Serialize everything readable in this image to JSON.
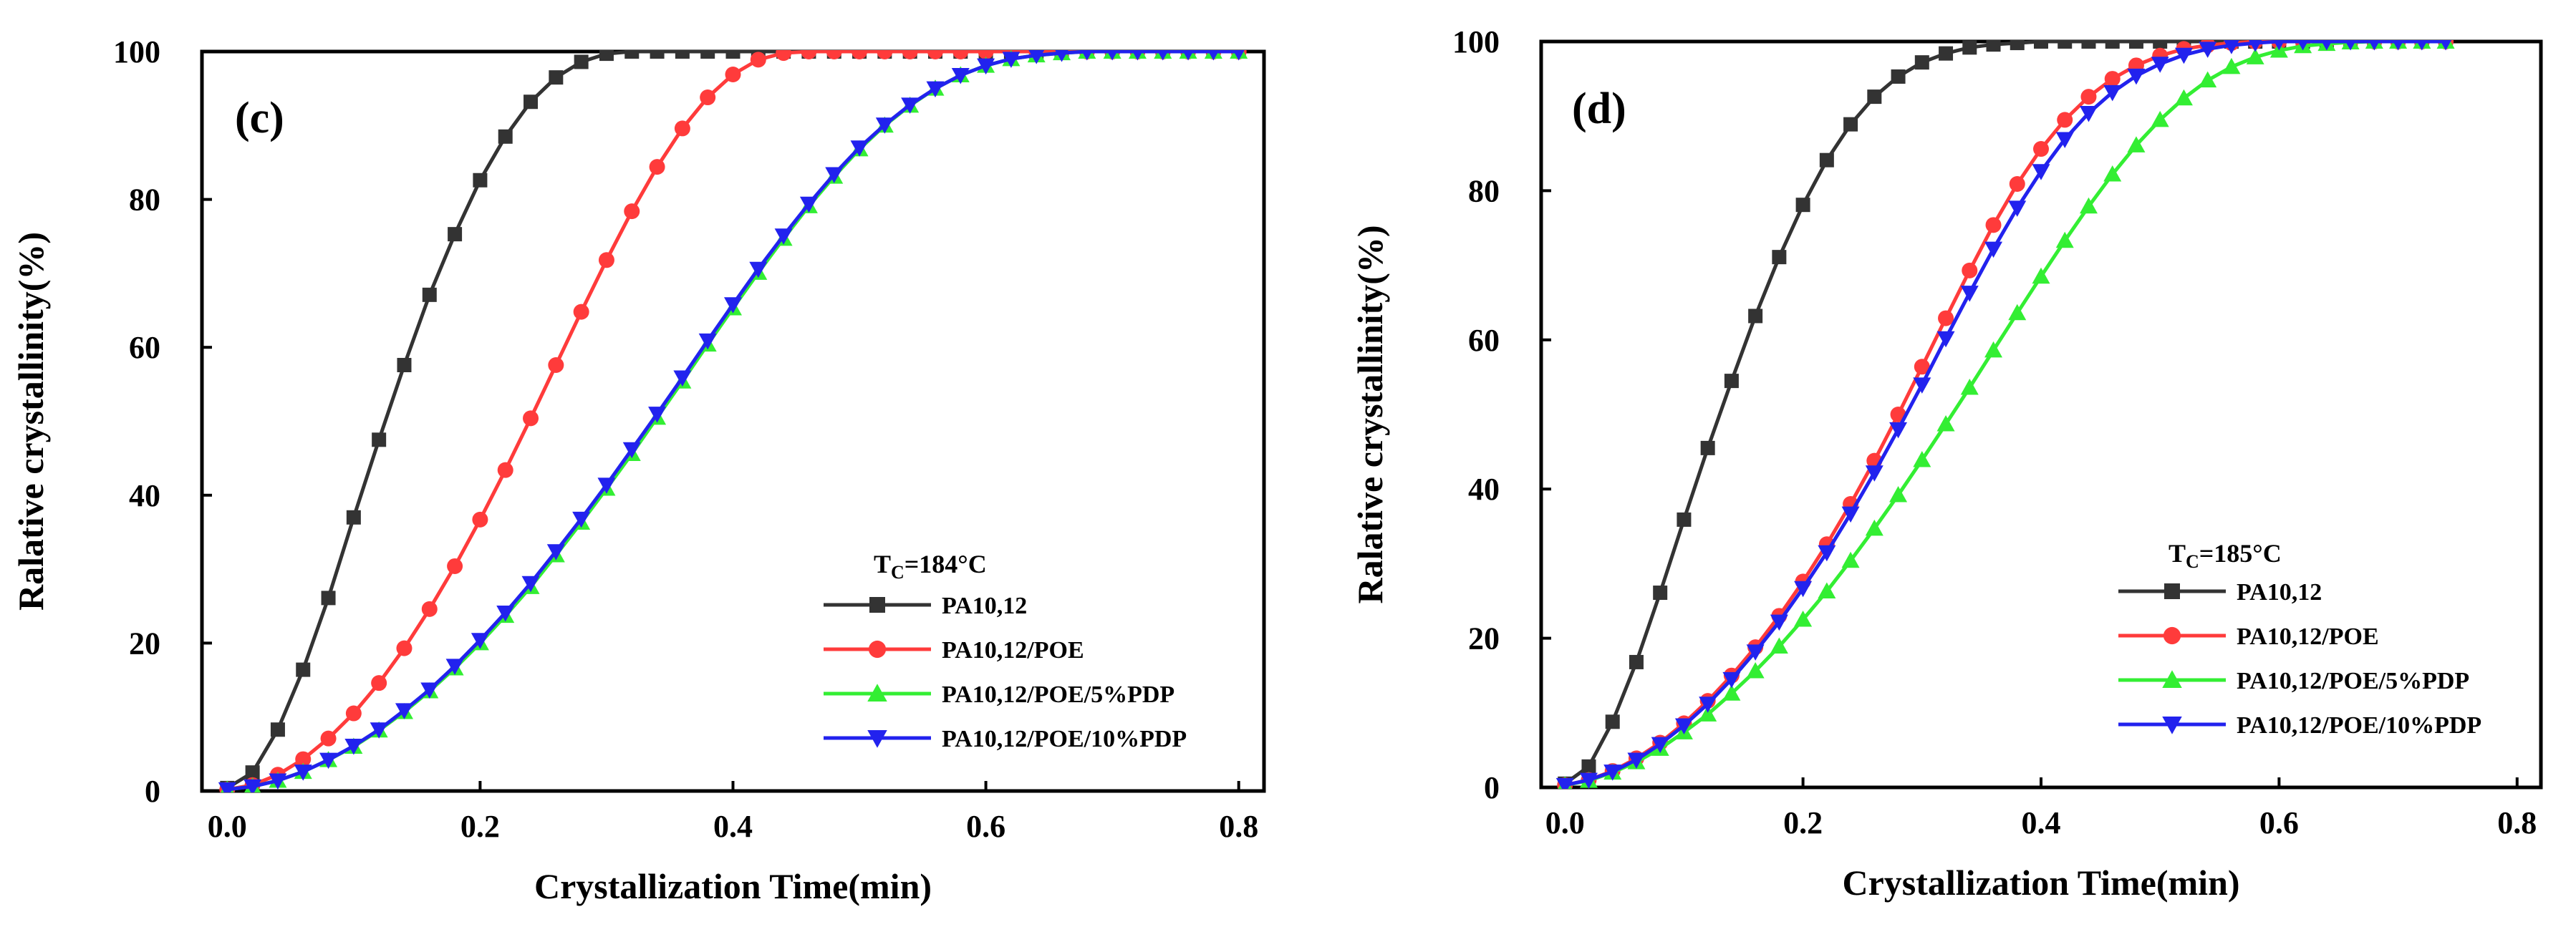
{
  "chart_data": [
    {
      "type": "line",
      "panel_label": "(c)",
      "xlabel": "Crystallization Time(min)",
      "ylabel": "Ralative crystallinity(%)",
      "xlim": [
        -0.02,
        0.82
      ],
      "ylim": [
        0,
        100
      ],
      "xticks": [
        0.0,
        0.2,
        0.4,
        0.6,
        0.8
      ],
      "xtick_labels": [
        "0.0",
        "0.2",
        "0.4",
        "0.6",
        "0.8"
      ],
      "yticks": [
        0,
        20,
        40,
        60,
        80,
        100
      ],
      "ytick_labels": [
        "0",
        "20",
        "40",
        "60",
        "80",
        "100"
      ],
      "grid": false,
      "legend_placement": "bottom-right",
      "legend_title_main": "T",
      "legend_title_sub": "C",
      "legend_title_rest": "=184°C",
      "series": [
        {
          "name": "PA10,12",
          "color": "#333333",
          "marker": "square",
          "x": [
            0.0,
            0.02,
            0.04,
            0.06,
            0.08,
            0.1,
            0.12,
            0.14,
            0.16,
            0.18,
            0.2,
            0.22,
            0.24,
            0.26,
            0.28,
            0.3,
            0.32,
            0.34,
            0.36,
            0.38,
            0.4,
            0.42,
            0.44,
            0.46,
            0.48,
            0.5,
            0.52,
            0.54,
            0.56,
            0.58,
            0.6,
            0.62,
            0.64,
            0.66,
            0.68,
            0.7,
            0.72,
            0.74,
            0.76,
            0.78,
            0.8
          ],
          "y": [
            0.4,
            2.5,
            8.3,
            16.4,
            26.1,
            37.0,
            47.5,
            57.6,
            67.1,
            75.3,
            82.6,
            88.5,
            93.2,
            96.5,
            98.6,
            99.7,
            100,
            100,
            100,
            100,
            100,
            100,
            100,
            100,
            100,
            100,
            100,
            100,
            100,
            100,
            100,
            100,
            100,
            100,
            100,
            100,
            100,
            100,
            100,
            100,
            100
          ]
        },
        {
          "name": "PA10,12/POE",
          "color": "#ff3b3b",
          "marker": "circle",
          "x": [
            0.0,
            0.02,
            0.04,
            0.06,
            0.08,
            0.1,
            0.12,
            0.14,
            0.16,
            0.18,
            0.2,
            0.22,
            0.24,
            0.26,
            0.28,
            0.3,
            0.32,
            0.34,
            0.36,
            0.38,
            0.4,
            0.42,
            0.44,
            0.46,
            0.48,
            0.5,
            0.52,
            0.54,
            0.56,
            0.58,
            0.6,
            0.62,
            0.64,
            0.66,
            0.68,
            0.7,
            0.72,
            0.74,
            0.76,
            0.78,
            0.8
          ],
          "y": [
            0.2,
            0.8,
            2.2,
            4.3,
            7.1,
            10.5,
            14.6,
            19.3,
            24.6,
            30.4,
            36.7,
            43.4,
            50.4,
            57.6,
            64.8,
            71.8,
            78.4,
            84.4,
            89.6,
            93.8,
            96.9,
            98.9,
            99.8,
            100,
            100,
            100,
            100,
            100,
            100,
            100,
            100,
            100,
            100,
            100,
            100,
            100,
            100,
            100,
            100,
            100,
            100
          ]
        },
        {
          "name": "PA10,12/POE/5%PDP",
          "color": "#33ee33",
          "marker": "triangle-up",
          "x": [
            0.0,
            0.02,
            0.04,
            0.06,
            0.08,
            0.1,
            0.12,
            0.14,
            0.16,
            0.18,
            0.2,
            0.22,
            0.24,
            0.26,
            0.28,
            0.3,
            0.32,
            0.34,
            0.36,
            0.38,
            0.4,
            0.42,
            0.44,
            0.46,
            0.48,
            0.5,
            0.52,
            0.54,
            0.56,
            0.58,
            0.6,
            0.62,
            0.64,
            0.66,
            0.68,
            0.7,
            0.72,
            0.74,
            0.76,
            0.78,
            0.8
          ],
          "y": [
            0.2,
            0.6,
            1.4,
            2.6,
            4.2,
            6.0,
            8.2,
            10.7,
            13.5,
            16.6,
            20.0,
            23.7,
            27.6,
            31.9,
            36.3,
            40.9,
            45.6,
            50.5,
            55.4,
            60.4,
            65.3,
            70.1,
            74.7,
            79.1,
            83.1,
            86.8,
            90.0,
            92.7,
            95.0,
            96.8,
            98.1,
            99.0,
            99.5,
            99.8,
            100,
            100,
            100,
            100,
            100,
            100,
            100
          ]
        },
        {
          "name": "PA10,12/POE/10%PDP",
          "color": "#2222ee",
          "marker": "triangle-down",
          "x": [
            0.0,
            0.02,
            0.04,
            0.06,
            0.08,
            0.1,
            0.12,
            0.14,
            0.16,
            0.18,
            0.2,
            0.22,
            0.24,
            0.26,
            0.28,
            0.3,
            0.32,
            0.34,
            0.36,
            0.38,
            0.4,
            0.42,
            0.44,
            0.46,
            0.48,
            0.5,
            0.52,
            0.54,
            0.56,
            0.58,
            0.6,
            0.62,
            0.64,
            0.66,
            0.68,
            0.7,
            0.72,
            0.74,
            0.76,
            0.78,
            0.8
          ],
          "y": [
            0.2,
            0.6,
            1.4,
            2.6,
            4.2,
            6.1,
            8.3,
            10.9,
            13.7,
            16.9,
            20.4,
            24.1,
            28.1,
            32.4,
            36.8,
            41.4,
            46.2,
            51.0,
            55.9,
            60.9,
            65.8,
            70.6,
            75.1,
            79.4,
            83.4,
            87.0,
            90.1,
            92.8,
            95.0,
            96.8,
            98.1,
            99.0,
            99.5,
            99.8,
            100,
            100,
            100,
            100,
            100,
            100,
            100
          ]
        }
      ]
    },
    {
      "type": "line",
      "panel_label": "(d)",
      "xlabel": "Crystallization Time(min)",
      "ylabel": "Ralative crystallinity(%)",
      "xlim": [
        -0.02,
        0.82
      ],
      "ylim": [
        0,
        100
      ],
      "xticks": [
        0.0,
        0.2,
        0.4,
        0.6,
        0.8
      ],
      "xtick_labels": [
        "0.0",
        "0.2",
        "0.4",
        "0.6",
        "0.8"
      ],
      "yticks": [
        0,
        20,
        40,
        60,
        80,
        100
      ],
      "ytick_labels": [
        "0",
        "20",
        "40",
        "60",
        "80",
        "100"
      ],
      "grid": false,
      "legend_placement": "bottom-right",
      "legend_title_main": "T",
      "legend_title_sub": "C",
      "legend_title_rest": "=185°C",
      "series": [
        {
          "name": "PA10,12",
          "color": "#333333",
          "marker": "square",
          "x": [
            0.0,
            0.02,
            0.04,
            0.06,
            0.08,
            0.1,
            0.12,
            0.14,
            0.16,
            0.18,
            0.2,
            0.22,
            0.24,
            0.26,
            0.28,
            0.3,
            0.32,
            0.34,
            0.36,
            0.38,
            0.4,
            0.42,
            0.44,
            0.46,
            0.48,
            0.5,
            0.52,
            0.54,
            0.56,
            0.58,
            0.6,
            0.62,
            0.64,
            0.66,
            0.68,
            0.7,
            0.72,
            0.74
          ],
          "y": [
            0.5,
            2.8,
            8.8,
            16.8,
            26.1,
            35.9,
            45.5,
            54.5,
            63.2,
            71.1,
            78.1,
            84.1,
            88.9,
            92.6,
            95.3,
            97.2,
            98.4,
            99.2,
            99.6,
            99.8,
            100,
            100,
            100,
            100,
            100,
            100,
            100,
            100,
            100,
            100,
            100,
            100,
            100,
            100,
            100,
            100,
            100,
            100
          ]
        },
        {
          "name": "PA10,12/POE",
          "color": "#ff3b3b",
          "marker": "circle",
          "x": [
            0.0,
            0.02,
            0.04,
            0.06,
            0.08,
            0.1,
            0.12,
            0.14,
            0.16,
            0.18,
            0.2,
            0.22,
            0.24,
            0.26,
            0.28,
            0.3,
            0.32,
            0.34,
            0.36,
            0.38,
            0.4,
            0.42,
            0.44,
            0.46,
            0.48,
            0.5,
            0.52,
            0.54,
            0.56,
            0.58,
            0.6,
            0.62,
            0.64,
            0.66,
            0.68,
            0.7,
            0.72,
            0.74
          ],
          "y": [
            0.3,
            1.0,
            2.2,
            3.9,
            6.0,
            8.6,
            11.6,
            15.0,
            18.8,
            23.0,
            27.6,
            32.6,
            38.0,
            43.8,
            50.0,
            56.4,
            62.9,
            69.3,
            75.4,
            80.9,
            85.6,
            89.5,
            92.6,
            95.0,
            96.8,
            98.1,
            99.0,
            99.5,
            99.8,
            100,
            100,
            100,
            100,
            100,
            100,
            100,
            100,
            100
          ]
        },
        {
          "name": "PA10,12/POE/5%PDP",
          "color": "#33ee33",
          "marker": "triangle-up",
          "x": [
            0.0,
            0.02,
            0.04,
            0.06,
            0.08,
            0.1,
            0.12,
            0.14,
            0.16,
            0.18,
            0.2,
            0.22,
            0.24,
            0.26,
            0.28,
            0.3,
            0.32,
            0.34,
            0.36,
            0.38,
            0.4,
            0.42,
            0.44,
            0.46,
            0.48,
            0.5,
            0.52,
            0.54,
            0.56,
            0.58,
            0.6,
            0.62,
            0.64,
            0.66,
            0.68,
            0.7,
            0.72,
            0.74
          ],
          "y": [
            0.3,
            0.9,
            2.0,
            3.4,
            5.2,
            7.4,
            9.8,
            12.6,
            15.6,
            18.9,
            22.5,
            26.3,
            30.4,
            34.7,
            39.2,
            43.9,
            48.7,
            53.6,
            58.6,
            63.6,
            68.5,
            73.3,
            77.9,
            82.2,
            86.1,
            89.5,
            92.4,
            94.8,
            96.6,
            97.9,
            98.8,
            99.4,
            99.7,
            99.9,
            100,
            100,
            100,
            100
          ]
        },
        {
          "name": "PA10,12/POE/10%PDP",
          "color": "#2222ee",
          "marker": "triangle-down",
          "x": [
            0.0,
            0.02,
            0.04,
            0.06,
            0.08,
            0.1,
            0.12,
            0.14,
            0.16,
            0.18,
            0.2,
            0.22,
            0.24,
            0.26,
            0.28,
            0.3,
            0.32,
            0.34,
            0.36,
            0.38,
            0.4,
            0.42,
            0.44,
            0.46,
            0.48,
            0.5,
            0.52,
            0.54,
            0.56,
            0.58,
            0.6,
            0.62,
            0.64,
            0.66,
            0.68,
            0.7,
            0.72,
            0.74
          ],
          "y": [
            0.3,
            1.0,
            2.1,
            3.7,
            5.8,
            8.3,
            11.2,
            14.5,
            18.2,
            22.2,
            26.7,
            31.5,
            36.7,
            42.2,
            48.0,
            54.0,
            60.2,
            66.3,
            72.2,
            77.7,
            82.6,
            86.9,
            90.4,
            93.2,
            95.4,
            97.0,
            98.2,
            99.0,
            99.5,
            99.8,
            100,
            100,
            100,
            100,
            100,
            100,
            100,
            100
          ]
        }
      ]
    }
  ]
}
